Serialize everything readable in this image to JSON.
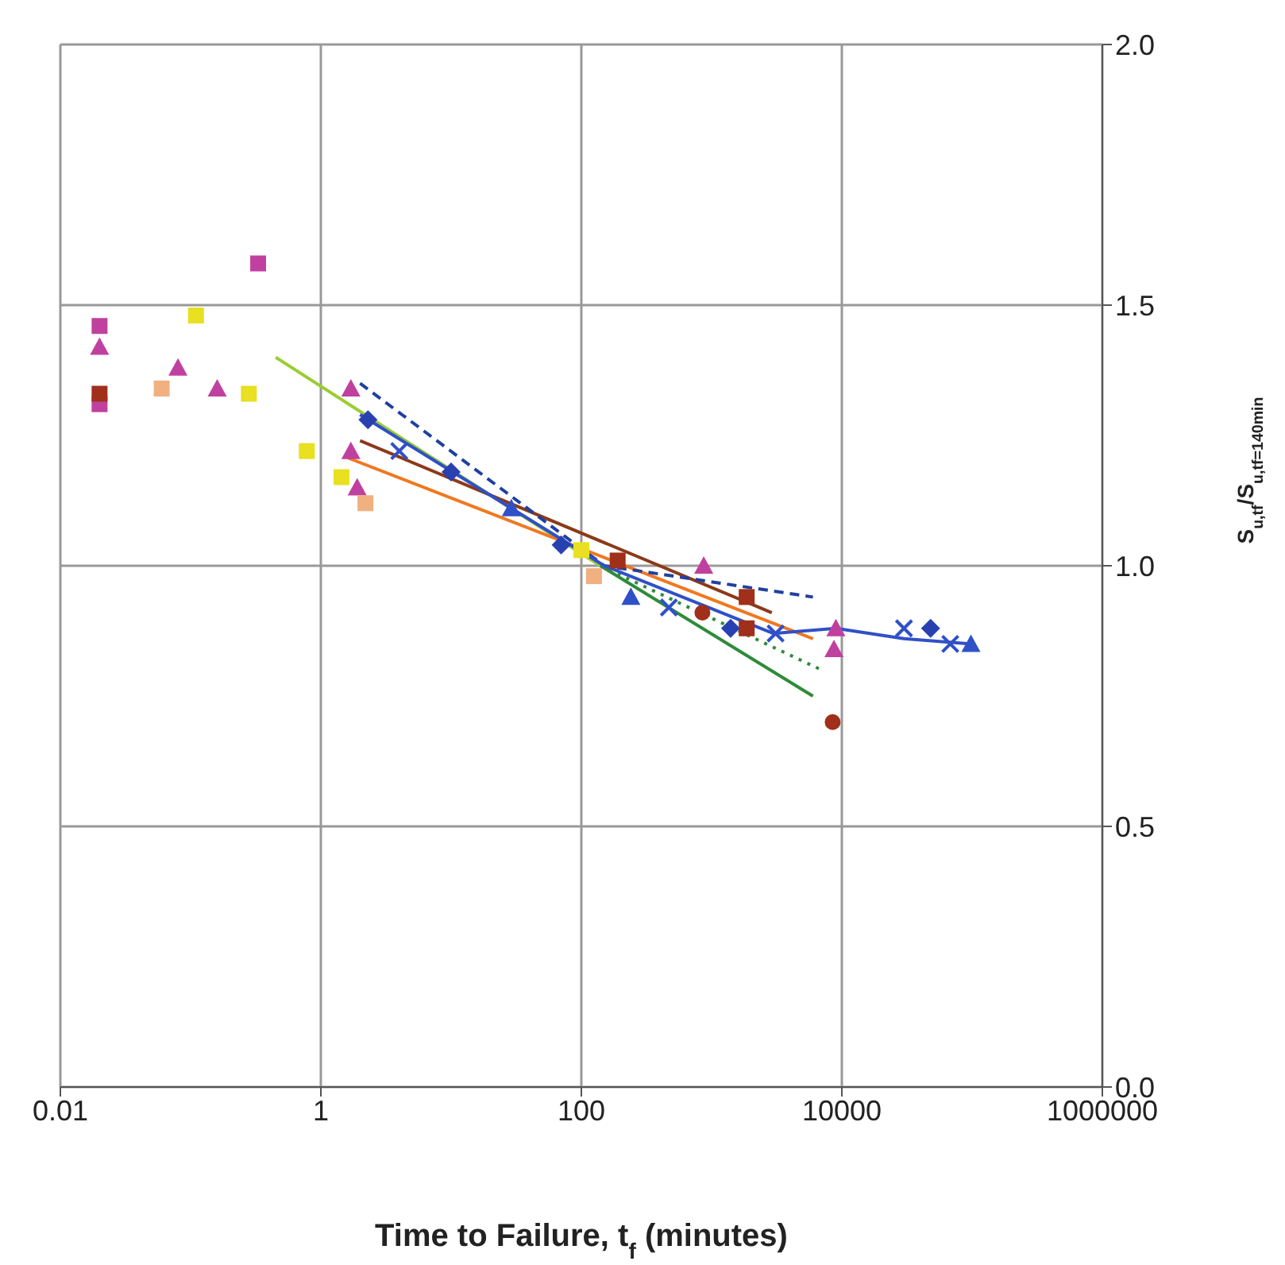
{
  "chart_data": {
    "type": "scatter",
    "xlabel": "Time to Failure, t$_{f}$ (minutes)",
    "ylabel": "S$_{u,tf}$/S$_{u,tf=140min}$",
    "log": "x",
    "xlim": [
      0.01,
      1000000
    ],
    "xticks": [
      0.01,
      1,
      100,
      10000,
      1000000
    ],
    "ylim": [
      0,
      2
    ],
    "yticks": [
      {
        "value": 0,
        "label": "0.0"
      },
      {
        "value": 0.5,
        "label": "0.5"
      },
      {
        "value": 1,
        "label": "1.0"
      },
      {
        "value": 1.5,
        "label": "1.5"
      },
      {
        "value": 2,
        "label": "2.0"
      }
    ],
    "grid": true,
    "series": [
      {
        "type": "line",
        "color": "#9acd32",
        "line_style": "solid",
        "x": [
          0.45,
          140
        ],
        "values": [
          1.4,
          1.0
        ]
      },
      {
        "type": "line",
        "color": "#2e8b3a",
        "line_style": "solid",
        "x": [
          140,
          6000
        ],
        "values": [
          1.0,
          0.75
        ]
      },
      {
        "type": "line",
        "color": "#2e8b3a",
        "line_style": "dotted",
        "x": [
          140,
          7000
        ],
        "values": [
          1.0,
          0.8
        ]
      },
      {
        "type": "line",
        "color": "#f07820",
        "line_style": "solid",
        "x": [
          1.5,
          6000
        ],
        "values": [
          1.21,
          0.86
        ]
      },
      {
        "type": "line",
        "color": "#8b3a1a",
        "line_style": "solid",
        "x": [
          2,
          2900
        ],
        "values": [
          1.24,
          0.91
        ]
      },
      {
        "type": "line",
        "color": "#2040a0",
        "line_style": "dashed",
        "x": [
          2,
          150,
          6000
        ],
        "values": [
          1.35,
          1.0,
          0.94
        ]
      },
      {
        "type": "line",
        "color": "#3050c8",
        "line_style": "solid",
        "x": [
          2,
          150,
          3000,
          9000,
          30000,
          100000
        ],
        "values": [
          1.29,
          1.0,
          0.87,
          0.88,
          0.86,
          0.85
        ]
      },
      {
        "color": "#c040a0",
        "marker": "square",
        "x": [
          0.02,
          0.02,
          0.33
        ],
        "values": [
          1.46,
          1.31,
          1.58
        ]
      },
      {
        "color": "#c040a0",
        "marker": "triangle",
        "x": [
          0.02,
          1.7,
          8700,
          0.08,
          0.16,
          1.7,
          1.9,
          870,
          9000
        ],
        "values": [
          1.42,
          1.34,
          0.84,
          1.38,
          1.34,
          1.22,
          1.15,
          1.0,
          0.88
        ]
      },
      {
        "color": "#e8e020",
        "marker": "square",
        "x": [
          0.11,
          0.28,
          0.78,
          1.44,
          100
        ],
        "values": [
          1.48,
          1.33,
          1.22,
          1.17,
          1.03
        ]
      },
      {
        "color": "#f0b080",
        "marker": "square",
        "x": [
          0.06,
          2.2,
          125
        ],
        "values": [
          1.34,
          1.12,
          0.98
        ]
      },
      {
        "color": "#a0301a",
        "marker": "square",
        "x": [
          0.02,
          190,
          1860,
          1860
        ],
        "values": [
          1.33,
          1.01,
          0.94,
          0.88
        ]
      },
      {
        "color": "#a0301a",
        "marker": "circle",
        "x": [
          850,
          8500
        ],
        "values": [
          0.91,
          0.7
        ]
      },
      {
        "color": "#2840b0",
        "marker": "diamond",
        "x": [
          2.3,
          10,
          70,
          1400,
          48000
        ],
        "values": [
          1.28,
          1.18,
          1.04,
          0.88,
          0.88
        ]
      },
      {
        "color": "#3050c8",
        "marker": "cross",
        "x": [
          4,
          470,
          3100,
          30000,
          68000
        ],
        "values": [
          1.22,
          0.92,
          0.87,
          0.88,
          0.85
        ]
      },
      {
        "color": "#3050c8",
        "marker": "triangle",
        "x": [
          29,
          240,
          98000
        ],
        "values": [
          1.11,
          0.94,
          0.85
        ]
      }
    ]
  }
}
